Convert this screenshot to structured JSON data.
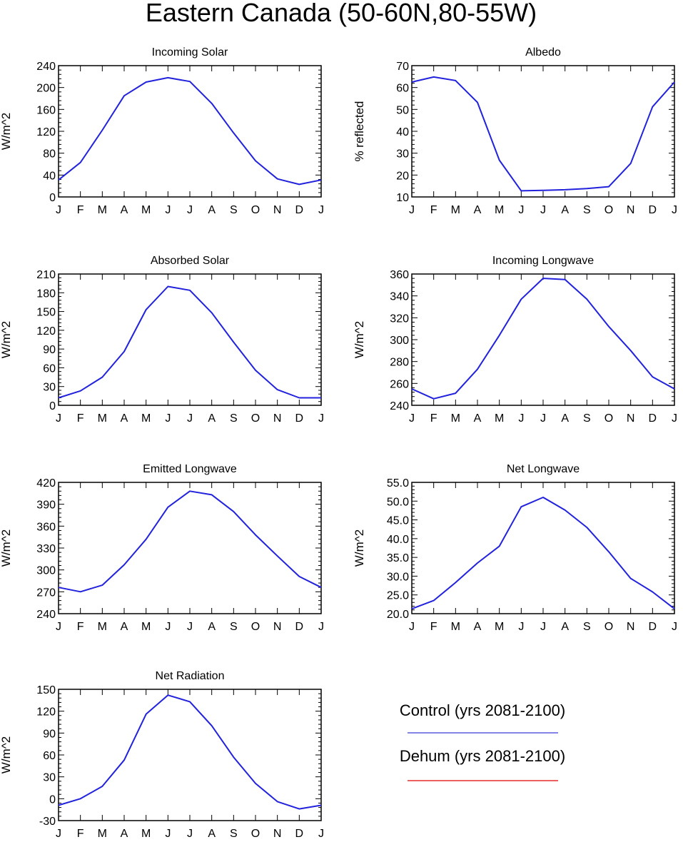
{
  "figure": {
    "title": "Eastern Canada (50-60N,80-55W)"
  },
  "legend": {
    "entries": [
      {
        "label": "Control (yrs 2081-2100)",
        "color": "#3a3ad8"
      },
      {
        "label": "Dehum (yrs 2081-2100)",
        "color": "#e00000"
      }
    ]
  },
  "chart_data": [
    {
      "type": "line",
      "title": "Incoming Solar",
      "ylabel": "W/m^2",
      "categories": [
        "J",
        "F",
        "M",
        "A",
        "M",
        "J",
        "J",
        "A",
        "S",
        "O",
        "N",
        "D",
        "J"
      ],
      "ylim": [
        0,
        240
      ],
      "yticks": [
        0,
        40,
        80,
        120,
        160,
        200,
        240
      ],
      "ytick_labels": [
        "0",
        "40",
        "80",
        "120",
        "160",
        "200",
        "240"
      ],
      "series": [
        {
          "values": [
            31,
            63,
            122,
            185,
            210,
            218,
            211,
            171,
            117,
            66,
            33,
            23,
            31
          ],
          "color": "#2222dd"
        }
      ]
    },
    {
      "type": "line",
      "title": "Albedo",
      "ylabel": "% reflected",
      "categories": [
        "J",
        "F",
        "M",
        "A",
        "M",
        "J",
        "J",
        "A",
        "S",
        "O",
        "N",
        "D",
        "J"
      ],
      "ylim": [
        10,
        70
      ],
      "yticks": [
        10,
        20,
        30,
        40,
        50,
        60,
        70
      ],
      "ytick_labels": [
        "10",
        "20",
        "30",
        "40",
        "50",
        "60",
        "70"
      ],
      "series": [
        {
          "values": [
            62.5,
            64.8,
            63.2,
            53.2,
            26.8,
            12.8,
            13.0,
            13.3,
            13.8,
            14.7,
            25.3,
            51.2,
            62.5
          ],
          "color": "#2222dd"
        }
      ]
    },
    {
      "type": "line",
      "title": "Absorbed Solar",
      "ylabel": "W/m^2",
      "categories": [
        "J",
        "F",
        "M",
        "A",
        "M",
        "J",
        "J",
        "A",
        "S",
        "O",
        "N",
        "D",
        "J"
      ],
      "ylim": [
        0,
        210
      ],
      "yticks": [
        0,
        30,
        60,
        90,
        120,
        150,
        180,
        210
      ],
      "ytick_labels": [
        "0",
        "30",
        "60",
        "90",
        "120",
        "150",
        "180",
        "210"
      ],
      "series": [
        {
          "values": [
            12,
            23,
            45,
            86,
            153,
            190,
            184,
            148,
            101,
            56,
            25,
            12,
            12
          ],
          "color": "#2222dd"
        }
      ]
    },
    {
      "type": "line",
      "title": "Incoming Longwave",
      "ylabel": "W/m^2",
      "categories": [
        "J",
        "F",
        "M",
        "A",
        "M",
        "J",
        "J",
        "A",
        "S",
        "O",
        "N",
        "D",
        "J"
      ],
      "ylim": [
        240,
        360
      ],
      "yticks": [
        240,
        260,
        280,
        300,
        320,
        340,
        360
      ],
      "ytick_labels": [
        "240",
        "260",
        "280",
        "300",
        "320",
        "340",
        "360"
      ],
      "series": [
        {
          "values": [
            255,
            246,
            251,
            273,
            304,
            337,
            356,
            355,
            337,
            312,
            290,
            266,
            255
          ],
          "color": "#2222dd"
        }
      ]
    },
    {
      "type": "line",
      "title": "Emitted Longwave",
      "ylabel": "W/m^2",
      "categories": [
        "J",
        "F",
        "M",
        "A",
        "M",
        "J",
        "J",
        "A",
        "S",
        "O",
        "N",
        "D",
        "J"
      ],
      "ylim": [
        240,
        420
      ],
      "yticks": [
        240,
        270,
        300,
        330,
        360,
        390,
        420
      ],
      "ytick_labels": [
        "240",
        "270",
        "300",
        "330",
        "360",
        "390",
        "420"
      ],
      "series": [
        {
          "values": [
            276,
            270,
            279,
            307,
            342,
            386,
            408,
            403,
            380,
            348,
            319,
            291,
            276
          ],
          "color": "#2222dd"
        }
      ]
    },
    {
      "type": "line",
      "title": "Net Longwave",
      "ylabel": "W/m^2",
      "categories": [
        "J",
        "F",
        "M",
        "A",
        "M",
        "J",
        "J",
        "A",
        "S",
        "O",
        "N",
        "D",
        "J"
      ],
      "ylim": [
        20,
        55
      ],
      "yticks": [
        20,
        25,
        30,
        35,
        40,
        45,
        50,
        55
      ],
      "ytick_labels": [
        "20.0",
        "25.0",
        "30.0",
        "35.0",
        "40.0",
        "45.0",
        "50.0",
        "55.0"
      ],
      "series": [
        {
          "values": [
            21.3,
            23.5,
            28.3,
            33.5,
            38.0,
            48.5,
            51.0,
            47.6,
            43.0,
            36.5,
            29.4,
            25.8,
            21.3
          ],
          "color": "#2222dd"
        }
      ]
    },
    {
      "type": "line",
      "title": "Net Radiation",
      "ylabel": "W/m^2",
      "categories": [
        "J",
        "F",
        "M",
        "A",
        "M",
        "J",
        "J",
        "A",
        "S",
        "O",
        "N",
        "D",
        "J"
      ],
      "ylim": [
        -30,
        150
      ],
      "yticks": [
        -30,
        0,
        30,
        60,
        90,
        120,
        150
      ],
      "ytick_labels": [
        "-30",
        "0",
        "30",
        "60",
        "90",
        "120",
        "150"
      ],
      "series": [
        {
          "values": [
            -9,
            0,
            17,
            53,
            116,
            142,
            133,
            100,
            57,
            21,
            -4,
            -14,
            -9
          ],
          "color": "#2222dd"
        }
      ]
    }
  ]
}
